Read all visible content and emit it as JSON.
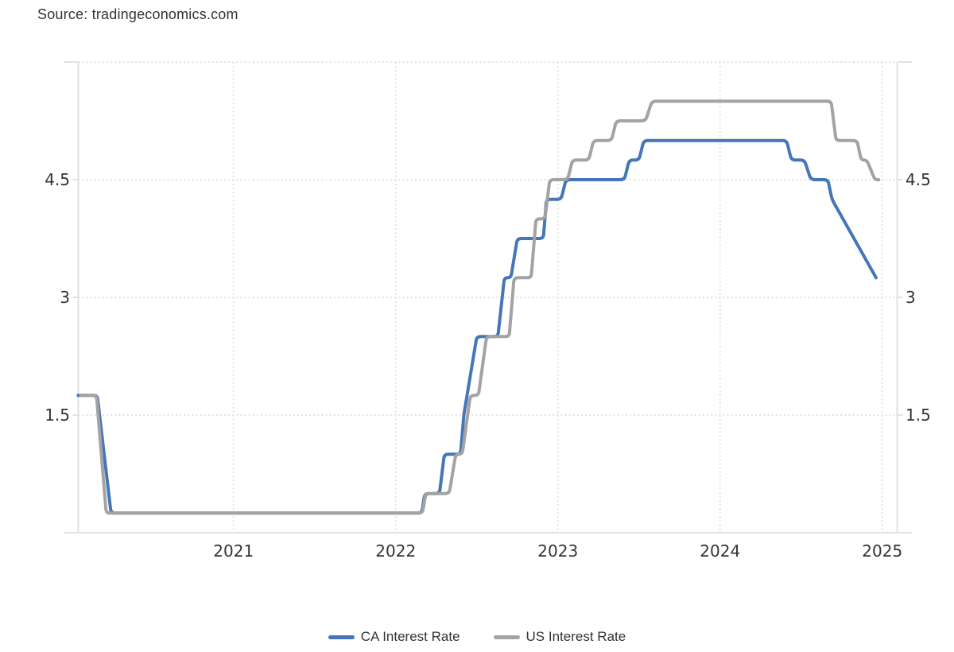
{
  "source_text": "Source: tradingeconomics.com",
  "colors": {
    "ca_line": "#4476B8",
    "us_line": "#A3A3A3",
    "grid": "#E2E2E2",
    "axis_border": "#E2E2E2",
    "label_text": "#333333",
    "background": "#FFFFFF"
  },
  "legend": {
    "position": "bottom-center",
    "items": [
      {
        "id": "ca",
        "label": "CA Interest Rate",
        "color_key": "ca_line"
      },
      {
        "id": "us",
        "label": "US Interest Rate",
        "color_key": "us_line"
      }
    ]
  },
  "chart_data": {
    "type": "line",
    "title": "",
    "subtitle": "",
    "unit": "percent",
    "x_axis": {
      "label": "",
      "tick_labels": [
        "2021",
        "2022",
        "2023",
        "2024",
        "2025"
      ],
      "tick_values": [
        2021,
        2022,
        2023,
        2024,
        2025
      ],
      "range": [
        2020.043,
        2025.092
      ],
      "gridlines": "dotted"
    },
    "y_axis": {
      "label": "",
      "tick_labels": [
        "1.5",
        "3",
        "4.5"
      ],
      "tick_values": [
        1.5,
        3,
        4.5
      ],
      "top_gridline_value": 6,
      "range": [
        0,
        6
      ],
      "sides": "both",
      "gridlines": "dotted"
    },
    "series": [
      {
        "id": "ca",
        "name": "CA Interest Rate",
        "color_key": "ca_line",
        "points": [
          [
            2020.042,
            1.75
          ],
          [
            2020.16,
            1.75
          ],
          [
            2020.245,
            0.25
          ],
          [
            2022.16,
            0.25
          ],
          [
            2022.18,
            0.5
          ],
          [
            2022.27,
            0.5
          ],
          [
            2022.3,
            1.0
          ],
          [
            2022.4,
            1.0
          ],
          [
            2022.42,
            1.5
          ],
          [
            2022.5,
            2.5
          ],
          [
            2022.63,
            2.5
          ],
          [
            2022.67,
            3.25
          ],
          [
            2022.71,
            3.25
          ],
          [
            2022.75,
            3.75
          ],
          [
            2022.91,
            3.75
          ],
          [
            2022.93,
            4.25
          ],
          [
            2023.02,
            4.25
          ],
          [
            2023.05,
            4.5
          ],
          [
            2023.41,
            4.5
          ],
          [
            2023.44,
            4.75
          ],
          [
            2023.5,
            4.75
          ],
          [
            2023.53,
            5.0
          ],
          [
            2024.41,
            5.0
          ],
          [
            2024.44,
            4.75
          ],
          [
            2024.52,
            4.75
          ],
          [
            2024.56,
            4.5
          ],
          [
            2024.665,
            4.5
          ],
          [
            2024.69,
            4.25
          ],
          [
            2024.962,
            3.25
          ]
        ]
      },
      {
        "id": "us",
        "name": "US Interest Rate",
        "color_key": "us_line",
        "points": [
          [
            2020.057,
            1.75
          ],
          [
            2020.155,
            1.75
          ],
          [
            2020.215,
            0.25
          ],
          [
            2022.165,
            0.25
          ],
          [
            2022.185,
            0.5
          ],
          [
            2022.33,
            0.5
          ],
          [
            2022.37,
            1.0
          ],
          [
            2022.41,
            1.0
          ],
          [
            2022.46,
            1.75
          ],
          [
            2022.51,
            1.75
          ],
          [
            2022.56,
            2.5
          ],
          [
            2022.7,
            2.5
          ],
          [
            2022.73,
            3.25
          ],
          [
            2022.835,
            3.25
          ],
          [
            2022.865,
            4.0
          ],
          [
            2022.92,
            4.0
          ],
          [
            2022.95,
            4.5
          ],
          [
            2023.06,
            4.5
          ],
          [
            2023.09,
            4.75
          ],
          [
            2023.19,
            4.75
          ],
          [
            2023.22,
            5.0
          ],
          [
            2023.33,
            5.0
          ],
          [
            2023.36,
            5.25
          ],
          [
            2023.54,
            5.25
          ],
          [
            2023.58,
            5.5
          ],
          [
            2024.685,
            5.5
          ],
          [
            2024.715,
            5.0
          ],
          [
            2024.845,
            5.0
          ],
          [
            2024.87,
            4.75
          ],
          [
            2024.905,
            4.75
          ],
          [
            2024.955,
            4.5
          ],
          [
            2024.978,
            4.5
          ]
        ]
      }
    ]
  }
}
